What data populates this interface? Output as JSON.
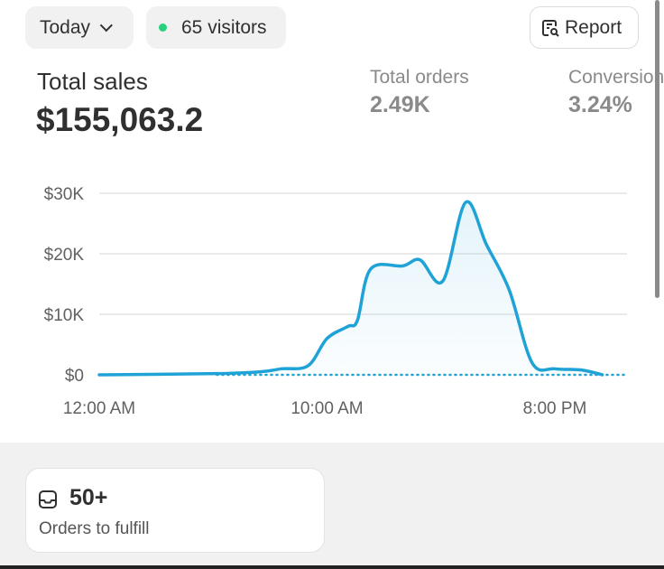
{
  "header": {
    "date_filter": "Today",
    "visitors": "65 visitors",
    "report_label": "Report",
    "live_color": "#29d07d"
  },
  "metrics": {
    "total_sales": {
      "label": "Total sales",
      "value": "$155,063.2"
    },
    "total_orders": {
      "label": "Total orders",
      "value": "2.49K"
    },
    "conversion": {
      "label": "Conversion",
      "value": "3.24%"
    }
  },
  "chart_data": {
    "type": "line",
    "y_ticks": [
      "$0",
      "$10K",
      "$20K",
      "$30K"
    ],
    "ylim": [
      0,
      30000
    ],
    "x_ticks": [
      "12:00 AM",
      "10:00 AM",
      "8:00 PM"
    ],
    "x_tick_times": [
      "00:00",
      "10:00",
      "20:00"
    ],
    "grid": true,
    "line_color": "#1fa3d6",
    "series": [
      {
        "x": [
          "00:00",
          "05:10",
          "07:05",
          "08:00",
          "09:10",
          "10:00",
          "10:55",
          "11:20",
          "11:55",
          "13:20",
          "14:05",
          "15:05",
          "16:05",
          "17:00",
          "18:00",
          "19:00",
          "20:00",
          "21:10",
          "22:05"
        ],
        "values": [
          0,
          200,
          500,
          1000,
          1500,
          6000,
          8000,
          9000,
          17500,
          18000,
          19000,
          15500,
          28500,
          21500,
          14000,
          2000,
          1000,
          800,
          0
        ]
      }
    ],
    "comparison": {
      "style": "dotted",
      "x": [
        "05:10",
        "23:10"
      ],
      "values": [
        0,
        0
      ]
    }
  },
  "fulfill_card": {
    "value": "50+",
    "label": "Orders to fulfill"
  }
}
